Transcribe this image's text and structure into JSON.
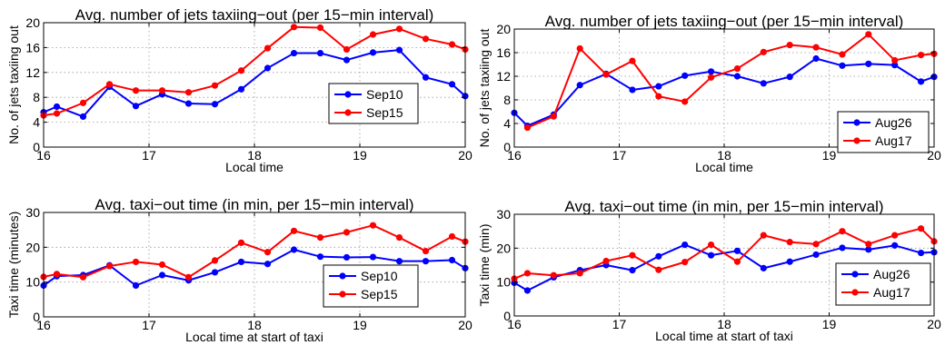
{
  "chart_data": [
    {
      "type": "line",
      "title": "Avg. number of jets taxiing−out (per 15−min interval)",
      "xlabel": "Local time",
      "ylabel": "No. of jets taxiing out",
      "xlim": [
        16,
        20
      ],
      "ylim": [
        0,
        20
      ],
      "xticks": [
        16,
        17,
        18,
        19,
        20
      ],
      "yticks": [
        0,
        4,
        8,
        12,
        16,
        20
      ],
      "grid": true,
      "legend": "center-right",
      "series": [
        {
          "name": "Sep10",
          "color": "#0000ff",
          "x": [
            16.0,
            16.125,
            16.375,
            16.625,
            16.875,
            17.125,
            17.375,
            17.625,
            17.875,
            18.125,
            18.375,
            18.625,
            18.875,
            19.125,
            19.375,
            19.625,
            19.875,
            20.0
          ],
          "y": [
            5.6,
            6.5,
            4.9,
            9.7,
            6.6,
            8.5,
            7.0,
            6.9,
            9.3,
            12.7,
            15.1,
            15.1,
            14.0,
            15.2,
            15.6,
            11.2,
            10.1,
            8.2
          ]
        },
        {
          "name": "Sep15",
          "color": "#ff0000",
          "x": [
            16.0,
            16.125,
            16.375,
            16.625,
            16.875,
            17.125,
            17.375,
            17.625,
            17.875,
            18.125,
            18.375,
            18.625,
            18.875,
            19.125,
            19.375,
            19.625,
            19.875,
            20.0
          ],
          "y": [
            5.1,
            5.4,
            7.1,
            10.1,
            9.1,
            9.1,
            8.8,
            9.9,
            12.3,
            15.9,
            19.3,
            19.2,
            15.7,
            18.1,
            19.0,
            17.4,
            16.5,
            15.7
          ]
        }
      ]
    },
    {
      "type": "line",
      "title": "Avg. number of jets taxiing−out (per 15−min interval)",
      "xlabel": "Local time",
      "ylabel": "No. of jets taxiing out",
      "xlim": [
        16,
        20
      ],
      "ylim": [
        0,
        20
      ],
      "xticks": [
        16,
        17,
        18,
        19,
        20
      ],
      "yticks": [
        0,
        4,
        8,
        12,
        16,
        20
      ],
      "grid": true,
      "legend": "bottom-right",
      "series": [
        {
          "name": "Aug26",
          "color": "#0000ff",
          "x": [
            16.0,
            16.125,
            16.375,
            16.625,
            16.875,
            17.125,
            17.375,
            17.625,
            17.875,
            18.125,
            18.375,
            18.625,
            18.875,
            19.125,
            19.375,
            19.625,
            19.875,
            20.0
          ],
          "y": [
            5.8,
            3.6,
            5.5,
            10.5,
            12.4,
            9.7,
            10.3,
            12.1,
            12.8,
            12.0,
            10.8,
            11.9,
            15.0,
            13.8,
            14.1,
            13.9,
            11.1,
            11.9
          ]
        },
        {
          "name": "Aug17",
          "color": "#ff0000",
          "x": [
            16.125,
            16.375,
            16.625,
            16.875,
            17.125,
            17.375,
            17.625,
            17.875,
            18.125,
            18.375,
            18.625,
            18.875,
            19.125,
            19.375,
            19.625,
            19.875,
            20.0
          ],
          "y": [
            3.3,
            5.2,
            16.7,
            12.3,
            14.6,
            8.6,
            7.7,
            11.8,
            13.3,
            16.1,
            17.3,
            16.9,
            15.7,
            19.1,
            14.7,
            15.6,
            15.8
          ]
        }
      ]
    },
    {
      "type": "line",
      "title": "Avg. taxi−out time (in min, per 15−min interval)",
      "xlabel": "Local time at start of taxi",
      "ylabel": "Taxi time (minutes)",
      "xlim": [
        16,
        20
      ],
      "ylim": [
        0,
        30
      ],
      "xticks": [
        16,
        17,
        18,
        19,
        20
      ],
      "yticks": [
        0,
        10,
        20,
        30
      ],
      "grid": true,
      "legend": "bottom-right",
      "series": [
        {
          "name": "Sep10",
          "color": "#0000ff",
          "x": [
            16.0,
            16.125,
            16.375,
            16.625,
            16.875,
            17.125,
            17.375,
            17.625,
            17.875,
            18.125,
            18.375,
            18.625,
            18.875,
            19.125,
            19.375,
            19.625,
            19.875,
            20.0
          ],
          "y": [
            9.0,
            11.7,
            12.0,
            14.8,
            9.0,
            12.0,
            10.5,
            12.8,
            15.8,
            15.2,
            19.3,
            17.3,
            17.1,
            17.2,
            16.0,
            16.0,
            16.3,
            14.0
          ]
        },
        {
          "name": "Sep15",
          "color": "#ff0000",
          "x": [
            16.0,
            16.125,
            16.375,
            16.625,
            16.875,
            17.125,
            17.375,
            17.625,
            17.875,
            18.125,
            18.375,
            18.625,
            18.875,
            19.125,
            19.375,
            19.625,
            19.875,
            20.0
          ],
          "y": [
            11.5,
            12.3,
            11.4,
            14.6,
            15.8,
            15.0,
            11.4,
            16.2,
            21.3,
            18.6,
            24.7,
            22.8,
            24.3,
            26.3,
            22.8,
            18.9,
            23.1,
            21.6
          ]
        }
      ]
    },
    {
      "type": "line",
      "title": "Avg. taxi−out time (in min, per 15−min interval)",
      "xlabel": "Local time at start of taxi",
      "ylabel": "Taxi time (min)",
      "xlim": [
        16,
        20
      ],
      "ylim": [
        0,
        30
      ],
      "xticks": [
        16,
        17,
        18,
        19,
        20
      ],
      "yticks": [
        0,
        10,
        20,
        30
      ],
      "grid": true,
      "legend": "bottom-right",
      "series": [
        {
          "name": "Aug26",
          "color": "#0000ff",
          "x": [
            16.0,
            16.125,
            16.375,
            16.625,
            16.875,
            17.125,
            17.375,
            17.625,
            17.875,
            18.125,
            18.375,
            18.625,
            18.875,
            19.125,
            19.375,
            19.625,
            19.875,
            20.0
          ],
          "y": [
            9.8,
            7.5,
            11.4,
            13.5,
            15.0,
            13.5,
            17.6,
            21.0,
            17.9,
            19.2,
            14.1,
            16.0,
            18.1,
            20.1,
            19.6,
            20.8,
            18.6,
            18.8
          ]
        },
        {
          "name": "Aug17",
          "color": "#ff0000",
          "x": [
            16.0,
            16.125,
            16.375,
            16.625,
            16.875,
            17.125,
            17.375,
            17.625,
            17.875,
            18.125,
            18.375,
            18.625,
            18.875,
            19.125,
            19.375,
            19.625,
            19.875,
            20.0
          ],
          "y": [
            11.0,
            12.6,
            12.0,
            12.6,
            16.2,
            17.9,
            13.6,
            15.9,
            21.0,
            16.0,
            23.8,
            21.8,
            21.2,
            25.0,
            21.2,
            23.8,
            25.8,
            22.0
          ]
        }
      ]
    }
  ]
}
